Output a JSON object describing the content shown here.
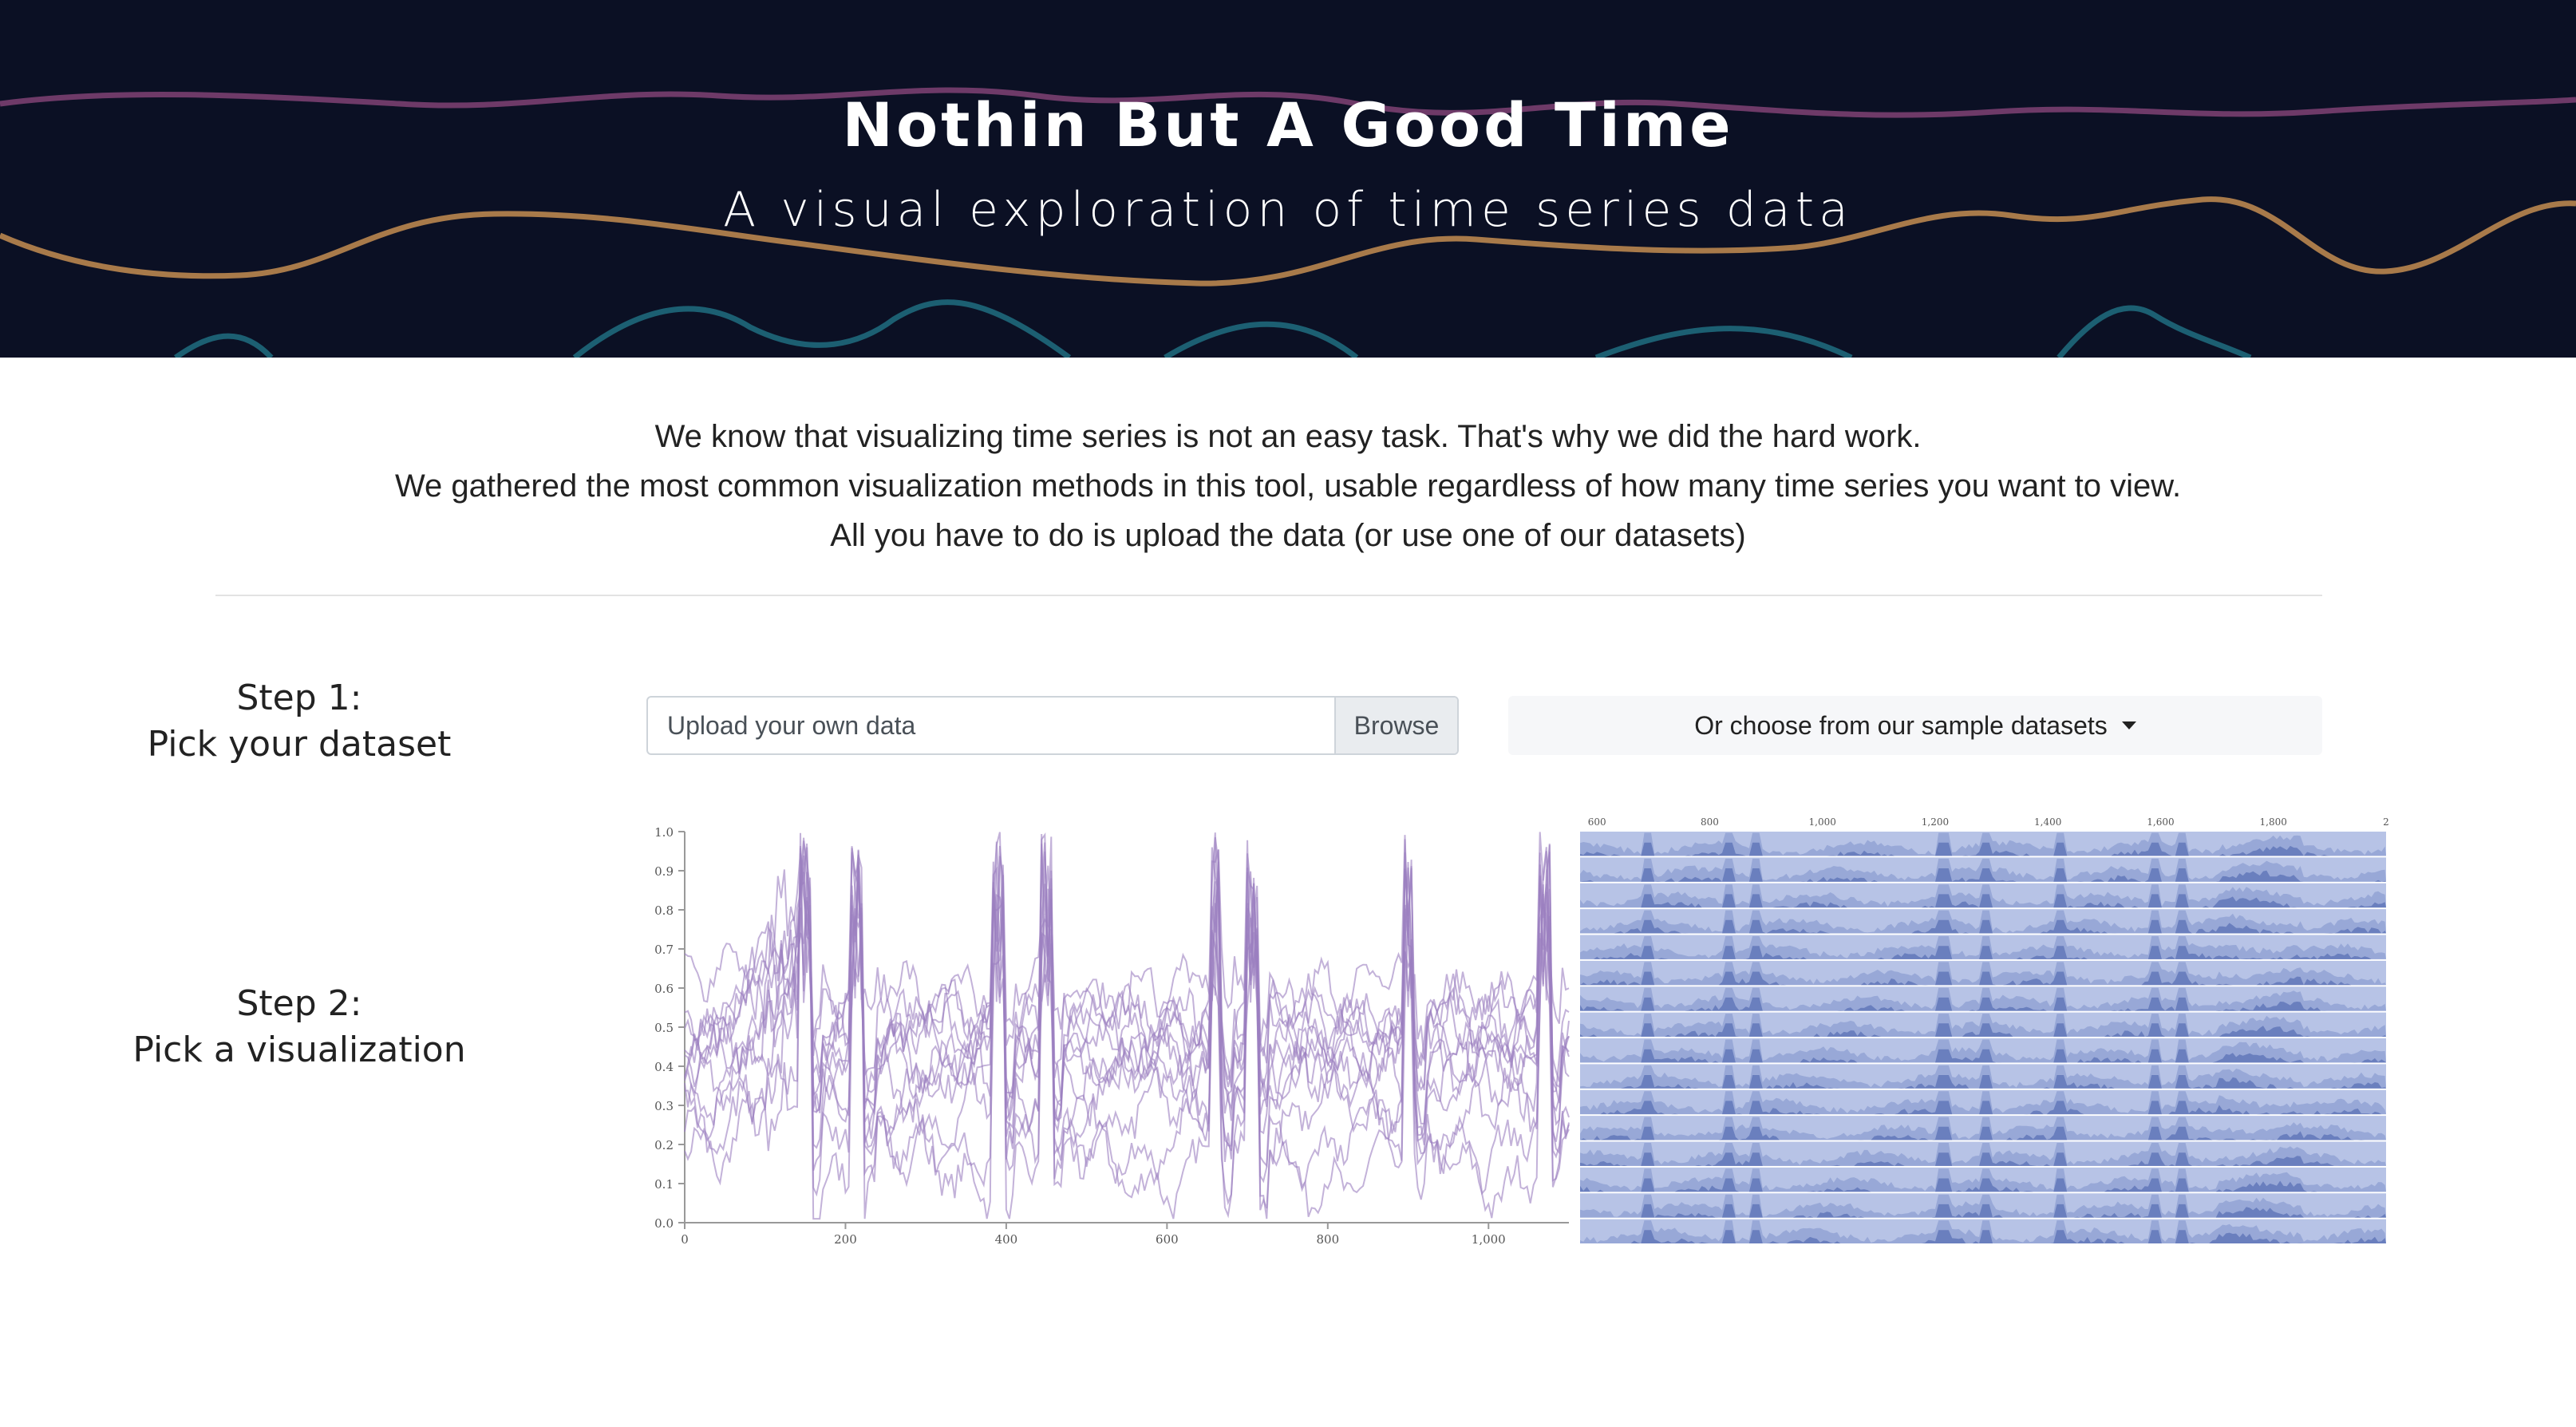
{
  "header": {
    "title": "Nothin But A Good Time",
    "subtitle": "A visual exploration of time series data"
  },
  "intro": {
    "lines": [
      "We know that visualizing time series is not an easy task. That's why we did the hard work.",
      "We gathered the most common visualization methods in this tool, usable regardless of how many time series you want to view.",
      "All you have to do is upload the data (or use one of our datasets)"
    ]
  },
  "steps": {
    "step1": {
      "label": "Step 1:",
      "text": "Pick your dataset"
    },
    "step2": {
      "label": "Step 2:",
      "text": "Pick a visualization"
    }
  },
  "upload": {
    "placeholder": "Upload your own data",
    "browse_label": "Browse"
  },
  "sample_dropdown": {
    "label": "Or choose from our sample datasets"
  },
  "colors": {
    "hero_bg": "#0b1024",
    "wave_purple": "#6e3a68",
    "wave_orange": "#a87a4a",
    "wave_teal": "#1c5f72",
    "line_chart": "#9b7fc0",
    "horizon_band": "#b7c3e6"
  },
  "chart_data": [
    {
      "type": "line",
      "title": "",
      "xlabel": "",
      "ylabel": "",
      "xlim": [
        0,
        1100
      ],
      "ylim": [
        0,
        1.0
      ],
      "x_ticks": [
        "0",
        "200",
        "400",
        "600",
        "800",
        "1,000"
      ],
      "y_ticks": [
        "0.0",
        "0.1",
        "0.2",
        "0.3",
        "0.4",
        "0.5",
        "0.6",
        "0.7",
        "0.8",
        "0.9",
        "1.0"
      ],
      "series_count": 12
    },
    {
      "type": "area",
      "title": "",
      "xlabel": "",
      "ylabel": "",
      "xlim": [
        570,
        2000
      ],
      "x_ticks": [
        "600",
        "800",
        "1,000",
        "1,200",
        "1,400",
        "1,600",
        "1,800",
        "2"
      ],
      "rows": 16
    }
  ]
}
